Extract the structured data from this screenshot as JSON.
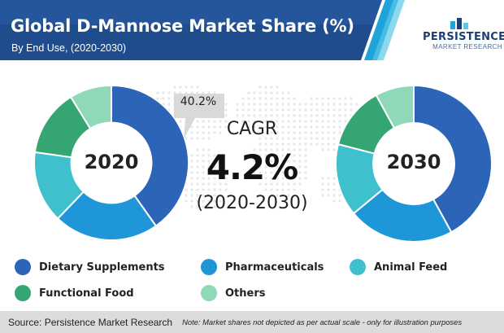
{
  "header": {
    "title": "Global D-Mannose Market Share (%)",
    "subtitle": "By End Use, (2020-2030)"
  },
  "logo": {
    "word": "PERSISTENCE",
    "sub": "MARKET RESEARCH"
  },
  "callout": {
    "text": "40.2%"
  },
  "cagr": {
    "label": "CAGR",
    "value": "4.2%",
    "range": "(2020-2030)"
  },
  "legend": [
    {
      "label": "Dietary Supplements",
      "color": "#2c64b8"
    },
    {
      "label": "Pharmaceuticals",
      "color": "#1e96d8"
    },
    {
      "label": "Animal Feed",
      "color": "#3fc0cd"
    },
    {
      "label": "Functional Food",
      "color": "#36a574"
    },
    {
      "label": "Others",
      "color": "#8fd9b9"
    }
  ],
  "footer": {
    "source": "Source: Persistence Market Research",
    "note": "Note: Market shares not depicted as per actual scale - only for illustration purposes"
  },
  "chart_data": [
    {
      "type": "pie",
      "title": "2020",
      "categories": [
        "Dietary Supplements",
        "Pharmaceuticals",
        "Animal Feed",
        "Functional Food",
        "Others"
      ],
      "values": [
        40.2,
        22,
        15,
        14,
        8.8
      ],
      "colors": [
        "#2c64b8",
        "#1e96d8",
        "#3fc0cd",
        "#36a574",
        "#8fd9b9"
      ]
    },
    {
      "type": "pie",
      "title": "2030",
      "categories": [
        "Dietary Supplements",
        "Pharmaceuticals",
        "Animal Feed",
        "Functional Food",
        "Others"
      ],
      "values": [
        42,
        22,
        15,
        13,
        8
      ],
      "colors": [
        "#2c64b8",
        "#1e96d8",
        "#3fc0cd",
        "#36a574",
        "#8fd9b9"
      ]
    }
  ]
}
